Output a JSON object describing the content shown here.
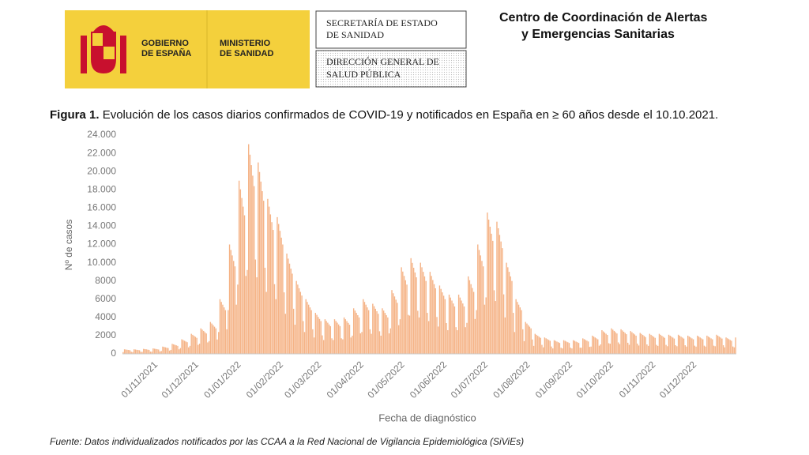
{
  "header": {
    "logo_left": [
      "GOBIERNO",
      "DE ESPAÑA"
    ],
    "logo_right": [
      "MINISTERIO",
      "DE SANIDAD"
    ],
    "box1": [
      "SECRETARÍA DE ESTADO",
      "DE SANIDAD"
    ],
    "box2": [
      "DIRECCIÓN GENERAL DE",
      "SALUD PÚBLICA"
    ],
    "centre": [
      "Centro de Coordinación de Alertas",
      "y Emergencias Sanitarias"
    ]
  },
  "figure_label": "Figura 1.",
  "chart_data": {
    "type": "bar",
    "title": "Evolución de los casos diarios confirmados de COVID-19 y notificados en España en ≥ 60 años desde el 10.10.2021.",
    "y_label": "Nº de casos",
    "x_label": "Fecha de diagnóstico",
    "color": "#f5b386",
    "grid": false,
    "ylim": [
      0,
      24000
    ],
    "yticks": [
      0,
      2000,
      4000,
      6000,
      8000,
      {
        "value": 10000,
        "label": "10.000"
      },
      {
        "value": 12000,
        "label": "12.000"
      },
      {
        "value": 14000,
        "label": "14.000"
      },
      {
        "value": 16000,
        "label": "16.000"
      },
      {
        "value": 18000,
        "label": "18.000"
      },
      {
        "value": 20000,
        "label": "20.000"
      },
      {
        "value": 22000,
        "label": "22.000"
      },
      {
        "value": 24000,
        "label": "24.000"
      }
    ],
    "categories": [
      null,
      null,
      null,
      null,
      null,
      null,
      null,
      null,
      null,
      null,
      null,
      null,
      null,
      null,
      null,
      null,
      null,
      null,
      null,
      null,
      null,
      null,
      "01/11/2021",
      null,
      null,
      null,
      null,
      null,
      null,
      null,
      null,
      null,
      null,
      null,
      null,
      null,
      null,
      null,
      null,
      null,
      null,
      null,
      null,
      null,
      null,
      null,
      null,
      null,
      null,
      null,
      null,
      null,
      "01/12/2021",
      null,
      null,
      null,
      null,
      null,
      null,
      null,
      null,
      null,
      null,
      null,
      null,
      null,
      null,
      null,
      null,
      null,
      null,
      null,
      null,
      null,
      null,
      null,
      null,
      null,
      null,
      null,
      null,
      null,
      null,
      "01/01/2022",
      null,
      null,
      null,
      null,
      null,
      null,
      null,
      null,
      null,
      null,
      null,
      null,
      null,
      null,
      null,
      null,
      null,
      null,
      null,
      null,
      null,
      null,
      null,
      null,
      null,
      null,
      null,
      null,
      null,
      null,
      "01/02/2022",
      null,
      null,
      null,
      null,
      null,
      null,
      null,
      null,
      null,
      null,
      null,
      null,
      null,
      null,
      null,
      null,
      null,
      null,
      null,
      null,
      null,
      null,
      null,
      null,
      null,
      null,
      null,
      "01/03/2022",
      null,
      null,
      null,
      null,
      null,
      null,
      null,
      null,
      null,
      null,
      null,
      null,
      null,
      null,
      null,
      null,
      null,
      null,
      null,
      null,
      null,
      null,
      null,
      null,
      null,
      null,
      null,
      null,
      null,
      null,
      "01/04/2022",
      null,
      null,
      null,
      null,
      null,
      null,
      null,
      null,
      null,
      null,
      null,
      null,
      null,
      null,
      null,
      null,
      null,
      null,
      null,
      null,
      null,
      null,
      null,
      null,
      null,
      null,
      null,
      null,
      null,
      "01/05/2022",
      null,
      null,
      null,
      null,
      null,
      null,
      null,
      null,
      null,
      null,
      null,
      null,
      null,
      null,
      null,
      null,
      null,
      null,
      null,
      null,
      null,
      null,
      null,
      null,
      null,
      null,
      null,
      null,
      null,
      null,
      "01/06/2022",
      null,
      null,
      null,
      null,
      null,
      null,
      null,
      null,
      null,
      null,
      null,
      null,
      null,
      null,
      null,
      null,
      null,
      null,
      null,
      null,
      null,
      null,
      null,
      null,
      null,
      null,
      null,
      null,
      null,
      "01/07/2022",
      null,
      null,
      null,
      null,
      null,
      null,
      null,
      null,
      null,
      null,
      null,
      null,
      null,
      null,
      null,
      null,
      null,
      null,
      null,
      null,
      null,
      null,
      null,
      null,
      null,
      null,
      null,
      null,
      null,
      null,
      "01/08/2022",
      null,
      null,
      null,
      null,
      null,
      null,
      null,
      null,
      null,
      null,
      null,
      null,
      null,
      null,
      null,
      null,
      null,
      null,
      null,
      null,
      null,
      null,
      null,
      null,
      null,
      null,
      null,
      null,
      null,
      null,
      "01/09/2022",
      null,
      null,
      null,
      null,
      null,
      null,
      null,
      null,
      null,
      null,
      null,
      null,
      null,
      null,
      null,
      null,
      null,
      null,
      null,
      null,
      null,
      null,
      null,
      null,
      null,
      null,
      null,
      null,
      null,
      "01/10/2022",
      null,
      null,
      null,
      null,
      null,
      null,
      null,
      null,
      null,
      null,
      null,
      null,
      null,
      null,
      null,
      null,
      null,
      null,
      null,
      null,
      null,
      null,
      null,
      null,
      null,
      null,
      null,
      null,
      null,
      null,
      "01/11/2022",
      null,
      null,
      null,
      null,
      null,
      null,
      null,
      null,
      null,
      null,
      null,
      null,
      null,
      null,
      null,
      null,
      null,
      null,
      null,
      null,
      null,
      null,
      null,
      null,
      null,
      null,
      null,
      null,
      null,
      "01/12/2022",
      null,
      null,
      null,
      null,
      null,
      null,
      null,
      null,
      null,
      null,
      null,
      null,
      null,
      null,
      null,
      null,
      null,
      null,
      null,
      null,
      null,
      null,
      null,
      null,
      null,
      null,
      null,
      null,
      null,
      null,
      null,
      null
    ],
    "values": [
      200,
      500,
      480,
      450,
      430,
      400,
      230,
      200,
      500,
      480,
      450,
      430,
      400,
      230,
      220,
      550,
      520,
      500,
      470,
      440,
      250,
      240,
      600,
      570,
      540,
      510,
      480,
      270,
      320,
      800,
      760,
      720,
      680,
      640,
      360,
      440,
      1100,
      1050,
      990,
      940,
      880,
      500,
      640,
      1600,
      1520,
      1440,
      1360,
      1280,
      720,
      880,
      2200,
      2090,
      1980,
      1870,
      1760,
      990,
      1120,
      2800,
      2660,
      2520,
      2380,
      2240,
      1260,
      1400,
      3500,
      3330,
      3150,
      2980,
      2800,
      1580,
      2400,
      6000,
      5700,
      5400,
      5100,
      4800,
      2700,
      4800,
      12000,
      11400,
      10800,
      10200,
      9600,
      5400,
      7600,
      19000,
      18050,
      17100,
      16150,
      15200,
      8550,
      9200,
      23000,
      21850,
      20700,
      19550,
      18400,
      10350,
      8400,
      21000,
      19950,
      18900,
      17850,
      16800,
      9450,
      6800,
      17000,
      16150,
      15300,
      14450,
      13600,
      7650,
      6000,
      15000,
      14250,
      13500,
      12750,
      12000,
      6750,
      4400,
      11000,
      10450,
      9900,
      9350,
      8800,
      4950,
      3200,
      8000,
      7600,
      7200,
      6800,
      6400,
      3600,
      2400,
      6000,
      5700,
      5400,
      5100,
      4800,
      2700,
      1800,
      4500,
      4280,
      4050,
      3830,
      3600,
      2030,
      1520,
      3800,
      3610,
      3420,
      3230,
      3040,
      1710,
      1520,
      3800,
      3610,
      3420,
      3230,
      3040,
      1710,
      1600,
      4000,
      3800,
      3600,
      3400,
      3200,
      1800,
      2000,
      5000,
      4750,
      4500,
      4250,
      4000,
      2250,
      2400,
      6000,
      5700,
      5400,
      5100,
      4800,
      2700,
      2200,
      5500,
      5230,
      4950,
      4680,
      4400,
      2480,
      2000,
      5000,
      4750,
      4500,
      4250,
      4000,
      2250,
      2800,
      7000,
      6650,
      6300,
      5950,
      5600,
      3150,
      3800,
      9500,
      9030,
      8550,
      8080,
      7600,
      4280,
      4200,
      10500,
      9980,
      9450,
      8930,
      8400,
      4730,
      4000,
      10000,
      9500,
      9000,
      8500,
      8000,
      4500,
      3600,
      9000,
      8550,
      8100,
      7650,
      7200,
      4050,
      3000,
      7500,
      7130,
      6750,
      6380,
      6000,
      3380,
      2600,
      6500,
      6180,
      5850,
      5530,
      5200,
      2930,
      2600,
      6500,
      6180,
      5850,
      5530,
      5200,
      2930,
      3400,
      8500,
      8080,
      7650,
      7230,
      6800,
      3830,
      4800,
      12000,
      11400,
      10800,
      10200,
      9600,
      5400,
      6200,
      15500,
      14730,
      13950,
      13180,
      12400,
      6980,
      5800,
      14500,
      13780,
      13050,
      12330,
      11600,
      6530,
      4000,
      10000,
      9500,
      9000,
      8500,
      8000,
      4500,
      2400,
      6000,
      5700,
      5400,
      5100,
      4800,
      2700,
      1400,
      3500,
      3330,
      3150,
      2980,
      2800,
      1580,
      880,
      2200,
      2090,
      1980,
      1870,
      1760,
      990,
      720,
      1800,
      1710,
      1620,
      1530,
      1440,
      810,
      600,
      1500,
      1430,
      1350,
      1280,
      1200,
      680,
      600,
      1500,
      1430,
      1350,
      1280,
      1200,
      680,
      600,
      1500,
      1430,
      1350,
      1280,
      1200,
      680,
      680,
      1700,
      1620,
      1530,
      1450,
      1360,
      770,
      800,
      2000,
      1900,
      1800,
      1700,
      1600,
      900,
      1040,
      2600,
      2470,
      2340,
      2210,
      2080,
      1170,
      1120,
      2800,
      2660,
      2520,
      2380,
      2240,
      1260,
      1080,
      2700,
      2570,
      2430,
      2300,
      2160,
      1220,
      1000,
      2500,
      2380,
      2250,
      2130,
      2000,
      1130,
      920,
      2300,
      2190,
      2070,
      1960,
      1840,
      1040,
      880,
      2200,
      2090,
      1980,
      1870,
      1760,
      990,
      880,
      2200,
      2090,
      1980,
      1870,
      1760,
      990,
      840,
      2100,
      2000,
      1890,
      1790,
      1680,
      950,
      840,
      2100,
      2000,
      1890,
      1790,
      1680,
      950,
      800,
      2000,
      1900,
      1800,
      1700,
      1600,
      900,
      800,
      2000,
      1900,
      1800,
      1700,
      1600,
      900,
      800,
      2000,
      1900,
      1800,
      1700,
      1600,
      900,
      840,
      2100,
      2000,
      1890,
      1790,
      1680,
      950,
      720,
      1800,
      1710,
      1620,
      1530,
      1440,
      810,
      720,
      1800
    ]
  },
  "source": "Fuente: Datos individualizados notificados por las CCAA a la Red Nacional de Vigilancia Epidemiológica (SiViEs)"
}
